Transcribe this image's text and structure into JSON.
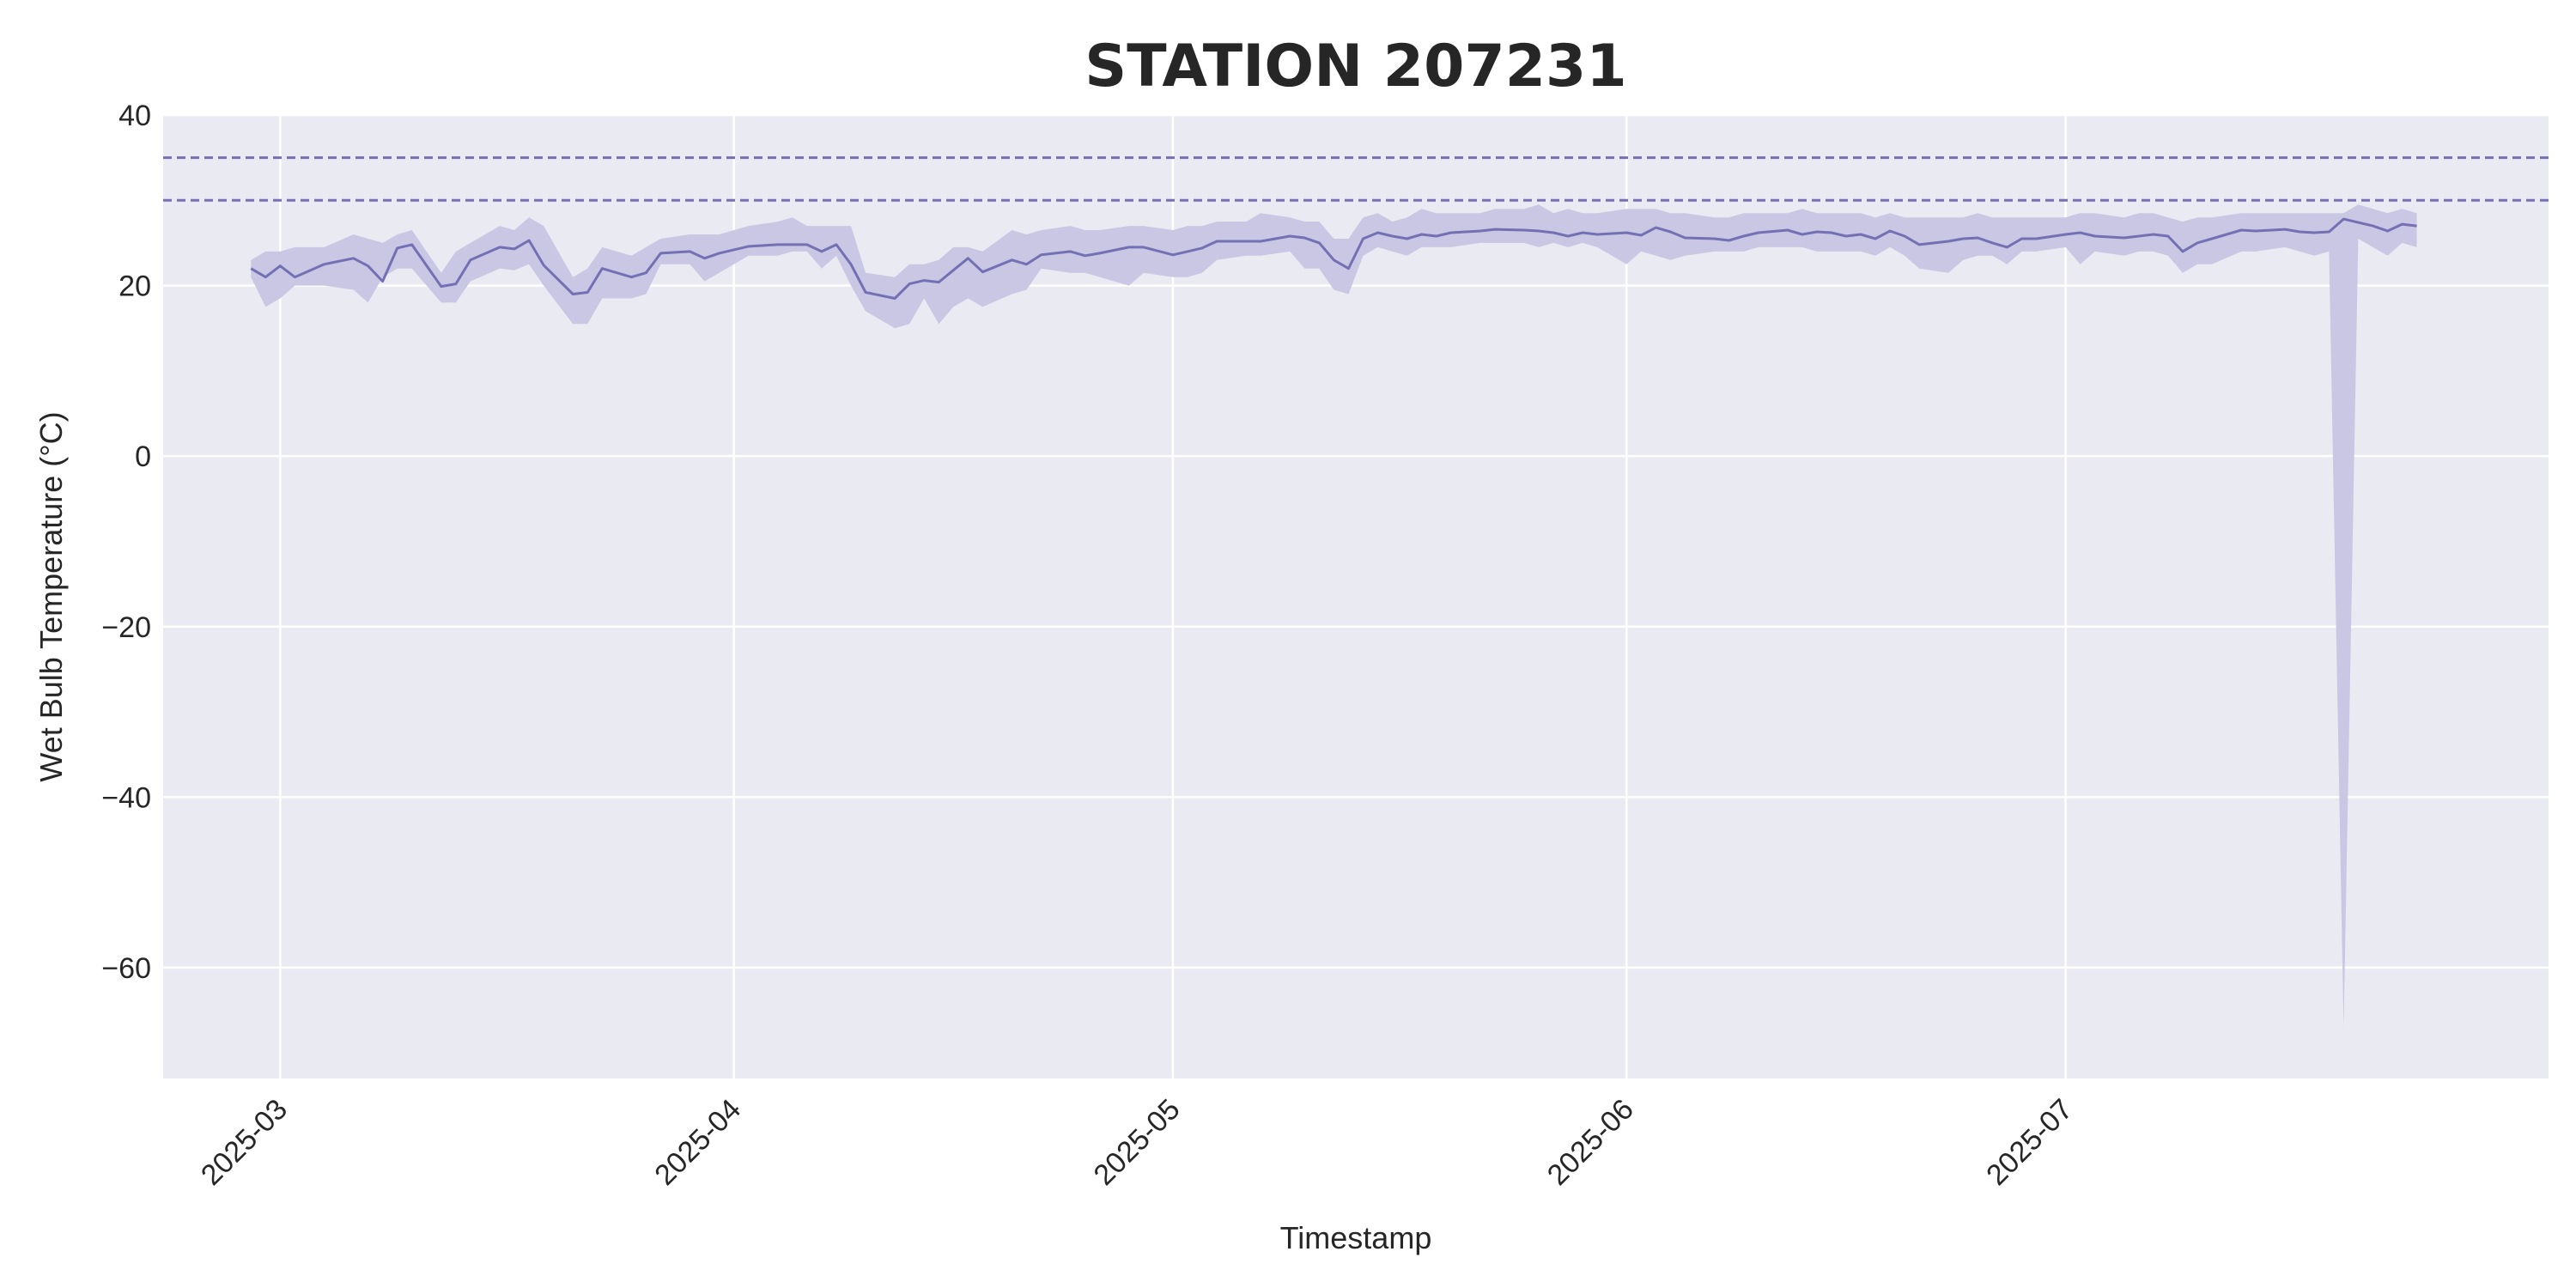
{
  "chart_data": {
    "type": "line",
    "title": "STATION 207231",
    "xlabel": "Timestamp",
    "ylabel": "Wet Bulb Temperature (°C)",
    "ylim": [
      -73,
      40
    ],
    "xlim": [
      "2025-02-21",
      "2025-08-03"
    ],
    "grid": true,
    "y_ticks": [
      40,
      20,
      0,
      -20,
      -40,
      -60
    ],
    "x_ticks": [
      "2025-03",
      "2025-04",
      "2025-05",
      "2025-06",
      "2025-07"
    ],
    "x_tick_dates": [
      "2025-03-01",
      "2025-04-01",
      "2025-05-01",
      "2025-06-01",
      "2025-07-01"
    ],
    "thresholds": [
      35,
      30
    ],
    "colors": {
      "line": "#7570b3",
      "band": "#c9c7e3",
      "threshold": "#7570b3",
      "plot_bg": "#eaeaf2",
      "grid": "#ffffff"
    },
    "series": [
      {
        "x": [
          "2025-02-27",
          "2025-02-28",
          "2025-03-01",
          "2025-03-02",
          "2025-03-04",
          "2025-03-06",
          "2025-03-07",
          "2025-03-08",
          "2025-03-09",
          "2025-03-10",
          "2025-03-12",
          "2025-03-13",
          "2025-03-14",
          "2025-03-16",
          "2025-03-17",
          "2025-03-18",
          "2025-03-19",
          "2025-03-21",
          "2025-03-22",
          "2025-03-23",
          "2025-03-25",
          "2025-03-26",
          "2025-03-27",
          "2025-03-29",
          "2025-03-30",
          "2025-03-31",
          "2025-04-02",
          "2025-04-04",
          "2025-04-05",
          "2025-04-06",
          "2025-04-07",
          "2025-04-08",
          "2025-04-09",
          "2025-04-10",
          "2025-04-12",
          "2025-04-13",
          "2025-04-14",
          "2025-04-15",
          "2025-04-16",
          "2025-04-17",
          "2025-04-18",
          "2025-04-20",
          "2025-04-21",
          "2025-04-22",
          "2025-04-24",
          "2025-04-25",
          "2025-04-26",
          "2025-04-28",
          "2025-04-29",
          "2025-05-01",
          "2025-05-02",
          "2025-05-03",
          "2025-05-04",
          "2025-05-06",
          "2025-05-07",
          "2025-05-09",
          "2025-05-10",
          "2025-05-11",
          "2025-05-12",
          "2025-05-13",
          "2025-05-14",
          "2025-05-15",
          "2025-05-16",
          "2025-05-17",
          "2025-05-18",
          "2025-05-19",
          "2025-05-20",
          "2025-05-22",
          "2025-05-23",
          "2025-05-25",
          "2025-05-26",
          "2025-05-27",
          "2025-05-28",
          "2025-05-29",
          "2025-05-30",
          "2025-06-01",
          "2025-06-02",
          "2025-06-03",
          "2025-06-04",
          "2025-06-05",
          "2025-06-07",
          "2025-06-08",
          "2025-06-09",
          "2025-06-10",
          "2025-06-12",
          "2025-06-13",
          "2025-06-14",
          "2025-06-15",
          "2025-06-16",
          "2025-06-17",
          "2025-06-18",
          "2025-06-19",
          "2025-06-20",
          "2025-06-21",
          "2025-06-23",
          "2025-06-24",
          "2025-06-25",
          "2025-06-26",
          "2025-06-27",
          "2025-06-28",
          "2025-06-29",
          "2025-07-01",
          "2025-07-02",
          "2025-07-03",
          "2025-07-05",
          "2025-07-06",
          "2025-07-07",
          "2025-07-08",
          "2025-07-09",
          "2025-07-10",
          "2025-07-11",
          "2025-07-13",
          "2025-07-14",
          "2025-07-16",
          "2025-07-17",
          "2025-07-18",
          "2025-07-19",
          "2025-07-20",
          "2025-07-21",
          "2025-07-22",
          "2025-07-23",
          "2025-07-24",
          "2025-07-25"
        ],
        "values": [
          22.0,
          21.0,
          22.3,
          21.0,
          22.5,
          23.2,
          22.3,
          20.5,
          24.4,
          24.8,
          19.9,
          20.2,
          23.0,
          24.5,
          24.3,
          25.3,
          22.4,
          19.0,
          19.2,
          22.0,
          21.0,
          21.5,
          23.8,
          24.0,
          23.2,
          23.8,
          24.6,
          24.8,
          24.8,
          24.8,
          24.0,
          24.8,
          22.5,
          19.2,
          18.5,
          20.2,
          20.6,
          20.4,
          21.8,
          23.2,
          21.6,
          23.0,
          22.5,
          23.6,
          24.0,
          23.5,
          23.8,
          24.5,
          24.5,
          23.6,
          24.0,
          24.4,
          25.2,
          25.2,
          25.2,
          25.8,
          25.6,
          25.0,
          23.0,
          22.0,
          25.5,
          26.2,
          25.8,
          25.5,
          26.0,
          25.8,
          26.2,
          26.4,
          26.6,
          26.5,
          26.4,
          26.2,
          25.8,
          26.2,
          26.0,
          26.2,
          25.9,
          26.8,
          26.3,
          25.6,
          25.5,
          25.3,
          25.8,
          26.2,
          26.5,
          26.0,
          26.3,
          26.2,
          25.8,
          26.0,
          25.5,
          26.4,
          25.8,
          24.8,
          25.2,
          25.5,
          25.6,
          25.0,
          24.5,
          25.5,
          25.5,
          26.0,
          26.2,
          25.8,
          25.6,
          25.8,
          26.0,
          25.8,
          24.0,
          25.0,
          25.5,
          26.5,
          26.4,
          26.6,
          26.3,
          26.2,
          26.3,
          27.8,
          27.4,
          27.0,
          26.4,
          27.2,
          27.0
        ],
        "lower": [
          21.0,
          17.5,
          18.5,
          20.0,
          20.0,
          19.5,
          18.0,
          21.0,
          22.0,
          22.0,
          18.0,
          18.0,
          20.5,
          22.0,
          21.8,
          22.5,
          20.0,
          15.5,
          15.5,
          18.5,
          18.5,
          19.0,
          22.5,
          22.5,
          20.5,
          21.5,
          23.5,
          23.5,
          24.0,
          24.0,
          22.0,
          23.5,
          20.0,
          17.0,
          15.0,
          15.5,
          18.5,
          15.5,
          17.5,
          18.5,
          17.5,
          19.0,
          19.5,
          22.0,
          21.5,
          21.5,
          21.0,
          20.0,
          21.5,
          21.0,
          21.0,
          21.5,
          23.0,
          23.5,
          23.5,
          24.0,
          22.0,
          22.0,
          19.5,
          19.0,
          23.5,
          24.5,
          24.0,
          23.5,
          24.5,
          24.5,
          24.5,
          25.0,
          25.0,
          25.0,
          24.5,
          25.0,
          24.5,
          25.0,
          24.5,
          22.5,
          24.0,
          23.5,
          23.0,
          23.5,
          24.0,
          24.0,
          24.0,
          24.5,
          24.5,
          24.5,
          24.0,
          24.0,
          24.0,
          24.0,
          23.5,
          24.5,
          23.5,
          22.0,
          21.5,
          23.0,
          23.5,
          23.5,
          22.5,
          24.0,
          24.0,
          24.5,
          22.5,
          24.0,
          23.5,
          24.0,
          24.0,
          23.5,
          21.5,
          22.5,
          22.5,
          24.0,
          24.0,
          24.5,
          24.0,
          23.5,
          24.0,
          -67.0,
          25.5,
          24.5,
          23.5,
          25.0,
          24.5
        ],
        "upper": [
          23.0,
          24.0,
          24.0,
          24.5,
          24.5,
          26.0,
          25.5,
          25.0,
          26.0,
          26.5,
          21.5,
          24.0,
          25.0,
          27.0,
          26.5,
          28.0,
          27.0,
          21.0,
          22.0,
          24.5,
          23.5,
          24.5,
          25.5,
          26.0,
          26.0,
          26.0,
          27.0,
          27.5,
          28.0,
          27.0,
          27.0,
          27.0,
          27.0,
          21.5,
          21.0,
          22.5,
          22.5,
          23.0,
          24.5,
          24.5,
          24.0,
          26.5,
          26.0,
          26.5,
          27.0,
          26.5,
          26.5,
          27.0,
          27.0,
          26.5,
          27.0,
          27.0,
          27.5,
          27.5,
          28.5,
          28.0,
          27.5,
          27.5,
          25.5,
          25.5,
          28.0,
          28.5,
          27.5,
          28.0,
          29.0,
          28.5,
          28.5,
          28.5,
          29.0,
          29.0,
          29.5,
          28.5,
          29.0,
          28.5,
          28.5,
          29.0,
          29.0,
          29.0,
          28.5,
          28.5,
          28.0,
          28.0,
          28.5,
          28.5,
          28.5,
          29.0,
          28.5,
          28.5,
          28.5,
          28.5,
          28.0,
          28.5,
          28.0,
          28.0,
          28.0,
          28.0,
          28.5,
          28.0,
          28.0,
          28.0,
          28.0,
          28.0,
          28.5,
          28.5,
          28.0,
          28.5,
          28.5,
          28.0,
          27.5,
          28.0,
          28.0,
          28.5,
          28.5,
          28.5,
          28.5,
          28.5,
          28.5,
          28.5,
          29.5,
          29.0,
          28.5,
          29.0,
          28.5
        ]
      }
    ]
  }
}
